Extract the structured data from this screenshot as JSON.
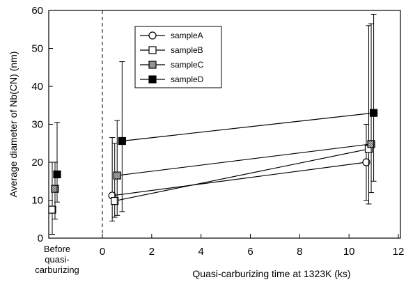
{
  "chart_data": {
    "type": "line",
    "xlabel": "Quasi-carburizing time at 1323K (ks)",
    "ylabel": "Average diameter of Nb(CN) (nm)",
    "xlim": [
      0,
      12
    ],
    "ylim": [
      0,
      60
    ],
    "xticks": [
      "0",
      "2",
      "4",
      "6",
      "8",
      "10",
      "12"
    ],
    "yticks": [
      "0",
      "10",
      "20",
      "30",
      "40",
      "50",
      "60"
    ],
    "before_label": [
      "Before",
      "quasi-",
      "carburizing"
    ],
    "grid": false,
    "legend_position": "top-left",
    "series": [
      {
        "name": "sampleA",
        "marker": "circle-open",
        "before": {
          "y": null,
          "err": [
            null,
            null
          ]
        },
        "points": [
          {
            "x": 0.4,
            "y": 11.2,
            "err": [
              4.5,
              26.5
            ]
          },
          {
            "x": 10.7,
            "y": 20.0,
            "err": [
              10.0,
              30.0
            ]
          }
        ]
      },
      {
        "name": "sampleB",
        "marker": "square-open",
        "before": {
          "y": 7.5,
          "err": [
            1.0,
            20.0
          ]
        },
        "points": [
          {
            "x": 0.5,
            "y": 9.8,
            "err": [
              5.5,
              25.0
            ]
          },
          {
            "x": 10.8,
            "y": 23.5,
            "err": [
              9.0,
              56.0
            ]
          }
        ]
      },
      {
        "name": "sampleC",
        "marker": "square-hatched",
        "before": {
          "y": 13.0,
          "err": [
            5.0,
            20.0
          ]
        },
        "points": [
          {
            "x": 0.6,
            "y": 16.5,
            "err": [
              6.0,
              31.0
            ]
          },
          {
            "x": 10.9,
            "y": 24.8,
            "err": [
              12.0,
              56.5
            ]
          }
        ]
      },
      {
        "name": "sampleD",
        "marker": "square-filled",
        "before": {
          "y": 16.8,
          "err": [
            9.5,
            30.5
          ]
        },
        "points": [
          {
            "x": 0.8,
            "y": 25.6,
            "err": [
              7.0,
              46.5
            ]
          },
          {
            "x": 11.0,
            "y": 33.0,
            "err": [
              15.0,
              59.0
            ]
          }
        ]
      }
    ]
  }
}
